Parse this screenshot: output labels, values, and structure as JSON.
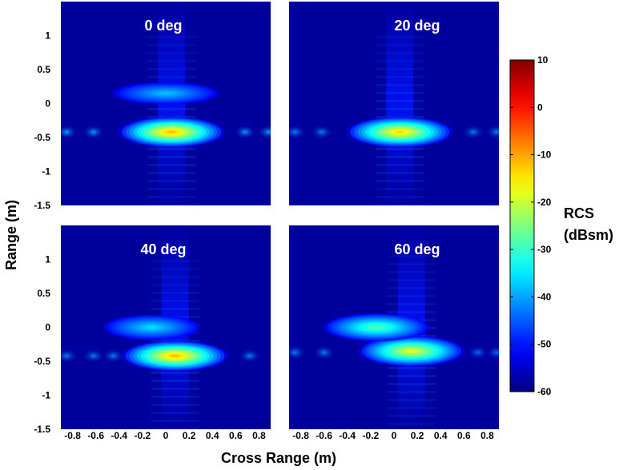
{
  "chart_data": {
    "type": "heatmap",
    "xlabel": "Cross Range (m)",
    "ylabel": "Range (m)",
    "xlim": [
      -0.9,
      0.9
    ],
    "ylim": [
      -1.5,
      1.5
    ],
    "x_ticks": [
      "-0.8",
      "-0.6",
      "-0.4",
      "-0.2",
      "0",
      "0.2",
      "0.4",
      "0.6",
      "0.8"
    ],
    "y_ticks": [
      "1",
      "0.5",
      "0",
      "-0.5",
      "-1",
      "-1.5"
    ],
    "x_tick_values": [
      -0.8,
      -0.6,
      -0.4,
      -0.2,
      0,
      0.2,
      0.4,
      0.6,
      0.8
    ],
    "y_tick_values": [
      1,
      0.5,
      0,
      -0.5,
      -1,
      -1.5
    ],
    "colorbar": {
      "label_line1": "RCS",
      "label_line2": "(dBsm)",
      "range": [
        -60,
        10
      ],
      "ticks": [
        "10",
        "0",
        "-10",
        "-20",
        "-30",
        "-40",
        "-50",
        "-60"
      ],
      "tick_values": [
        10,
        0,
        -10,
        -20,
        -30,
        -40,
        -50,
        -60
      ],
      "colormap": "jet"
    },
    "background_dBsm": -58,
    "panels": [
      {
        "title": "0 deg",
        "scatterers": [
          {
            "x": 0.05,
            "y": -0.42,
            "sx": 0.22,
            "sy": 0.11,
            "peak_dBsm": -12
          },
          {
            "x": 0.0,
            "y": 0.15,
            "sx": 0.22,
            "sy": 0.08,
            "peak_dBsm": -38
          }
        ],
        "spots": [
          {
            "x": -0.85,
            "y": -0.42,
            "peak_dBsm": -40
          },
          {
            "x": -0.62,
            "y": -0.42,
            "peak_dBsm": -40
          },
          {
            "x": 0.68,
            "y": -0.42,
            "peak_dBsm": -40
          },
          {
            "x": 0.88,
            "y": -0.42,
            "peak_dBsm": -40
          }
        ]
      },
      {
        "title": "20 deg",
        "scatterers": [
          {
            "x": 0.05,
            "y": -0.42,
            "sx": 0.22,
            "sy": 0.11,
            "peak_dBsm": -14
          }
        ],
        "spots": [
          {
            "x": -0.85,
            "y": -0.42,
            "peak_dBsm": -42
          },
          {
            "x": -0.62,
            "y": -0.42,
            "peak_dBsm": -42
          },
          {
            "x": 0.68,
            "y": -0.42,
            "peak_dBsm": -42
          },
          {
            "x": 0.88,
            "y": -0.42,
            "peak_dBsm": -42
          }
        ]
      },
      {
        "title": "40 deg",
        "scatterers": [
          {
            "x": 0.08,
            "y": -0.42,
            "sx": 0.22,
            "sy": 0.11,
            "peak_dBsm": -12
          },
          {
            "x": -0.12,
            "y": 0.0,
            "sx": 0.2,
            "sy": 0.09,
            "peak_dBsm": -36
          }
        ],
        "spots": [
          {
            "x": -0.85,
            "y": -0.42,
            "peak_dBsm": -42
          },
          {
            "x": -0.62,
            "y": -0.42,
            "peak_dBsm": -42
          },
          {
            "x": -0.45,
            "y": -0.42,
            "peak_dBsm": -42
          },
          {
            "x": 0.72,
            "y": -0.42,
            "peak_dBsm": -42
          }
        ]
      },
      {
        "title": "60 deg",
        "scatterers": [
          {
            "x": 0.15,
            "y": -0.35,
            "sx": 0.22,
            "sy": 0.11,
            "peak_dBsm": -18
          },
          {
            "x": -0.15,
            "y": 0.0,
            "sx": 0.22,
            "sy": 0.1,
            "peak_dBsm": -28
          }
        ],
        "spots": [
          {
            "x": -0.85,
            "y": -0.37,
            "peak_dBsm": -42
          },
          {
            "x": -0.6,
            "y": -0.37,
            "peak_dBsm": -42
          },
          {
            "x": 0.72,
            "y": -0.37,
            "peak_dBsm": -44
          },
          {
            "x": 0.88,
            "y": -0.37,
            "peak_dBsm": -44
          }
        ]
      }
    ]
  }
}
